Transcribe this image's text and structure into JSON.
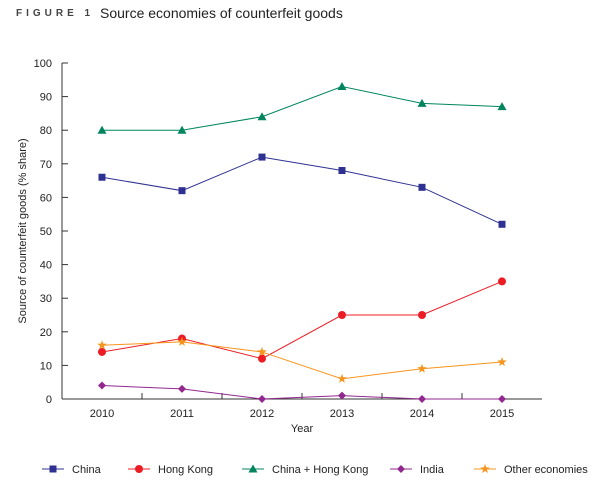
{
  "figure": {
    "label": "FIGURE 1",
    "title": "Source economies of counterfeit goods"
  },
  "chart_data": {
    "type": "line",
    "title": "Source economies of counterfeit goods",
    "xlabel": "Year",
    "ylabel": "Source of counterfeit goods (% share)",
    "ylim": [
      0,
      100
    ],
    "yticks": [
      0,
      10,
      20,
      30,
      40,
      50,
      60,
      70,
      80,
      90,
      100
    ],
    "categories": [
      "2010",
      "2011",
      "2012",
      "2013",
      "2014",
      "2015"
    ],
    "legend_position": "bottom",
    "series": [
      {
        "name": "China",
        "marker": "square",
        "color": "#2e3192",
        "values": [
          66,
          62,
          72,
          68,
          63,
          52
        ]
      },
      {
        "name": "Hong Kong",
        "marker": "circle",
        "color": "#ed1c24",
        "values": [
          14,
          18,
          12,
          25,
          25,
          35
        ]
      },
      {
        "name": "China + Hong Kong",
        "marker": "triangle",
        "color": "#00855f",
        "values": [
          80,
          80,
          84,
          93,
          88,
          87
        ]
      },
      {
        "name": "India",
        "marker": "diamond",
        "color": "#92278f",
        "values": [
          4,
          3,
          0,
          1,
          0,
          0
        ]
      },
      {
        "name": "Other economies",
        "marker": "star",
        "color": "#f7941d",
        "values": [
          16,
          17,
          14,
          6,
          9,
          11
        ]
      }
    ]
  }
}
